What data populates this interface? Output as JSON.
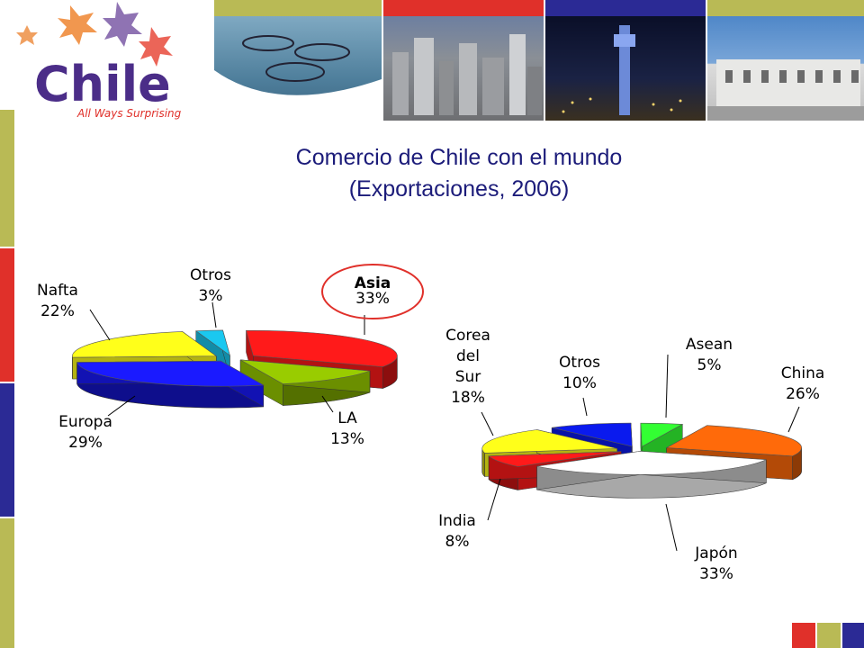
{
  "brand": {
    "name": "Chile",
    "tagline": "All Ways Surprising",
    "colors": {
      "red": "#e0302a",
      "blue": "#2b2a95",
      "olive": "#b9ba55",
      "purple": "#4b2d88",
      "orange": "#e8742a"
    }
  },
  "slide": {
    "title_line1": "Comercio de Chile con el mundo",
    "title_line2": "(Exportaciones, 2006)"
  },
  "chart_data": [
    {
      "type": "pie",
      "title": "",
      "slices": [
        {
          "label": "Asia",
          "value": 33,
          "display": "33%",
          "color": "#ff1a1a",
          "highlighted": true
        },
        {
          "label": "LA",
          "value": 13,
          "display": "13%",
          "color": "#99cc00"
        },
        {
          "label": "Europa",
          "value": 29,
          "display": "29%",
          "color": "#1a1aff"
        },
        {
          "label": "Nafta",
          "value": 22,
          "display": "22%",
          "color": "#ffff1a"
        },
        {
          "label": "Otros",
          "value": 3,
          "display": "3%",
          "color": "#1ac8f0"
        }
      ]
    },
    {
      "type": "pie",
      "title": "",
      "slices": [
        {
          "label": "Asean",
          "value": 5,
          "display": "5%",
          "color": "#33ff33"
        },
        {
          "label": "China",
          "value": 26,
          "display": "26%",
          "color": "#ff6a0a"
        },
        {
          "label": "Japón",
          "value": 33,
          "display": "33%",
          "color": "#ffffff"
        },
        {
          "label": "India",
          "value": 8,
          "display": "8%",
          "color": "#ff1a1a"
        },
        {
          "label": "Corea del Sur",
          "display": "18%",
          "value": 18,
          "color": "#ffff1a"
        },
        {
          "label": "Otros",
          "value": 10,
          "display": "10%",
          "color": "#0a1aee"
        }
      ]
    }
  ]
}
